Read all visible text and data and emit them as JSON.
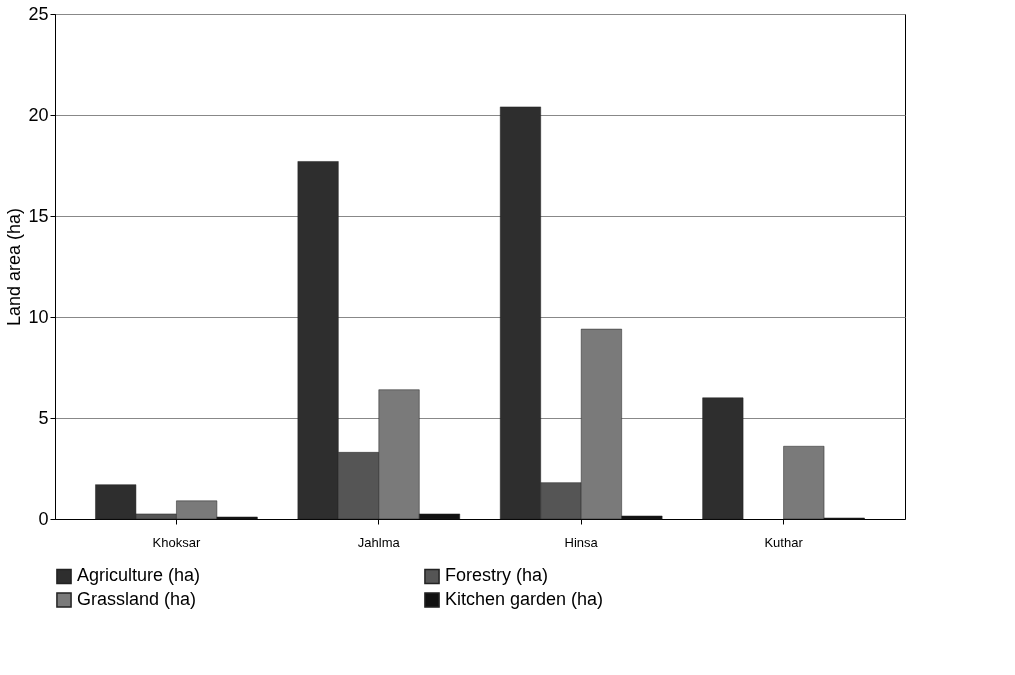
{
  "chart_data": {
    "type": "bar",
    "ylabel": "Land area (ha)",
    "categories": [
      "Khoksar",
      "Jahlma",
      "Hinsa",
      "Kuthar"
    ],
    "series": [
      {
        "name": "Agriculture (ha)",
        "color": "#2e2e2e",
        "values": [
          1.7,
          17.7,
          20.4,
          6.0
        ]
      },
      {
        "name": "Forestry (ha)",
        "color": "#555555",
        "values": [
          0.25,
          3.3,
          1.8,
          null
        ]
      },
      {
        "name": "Grassland (ha)",
        "color": "#7a7a7a",
        "values": [
          0.9,
          6.4,
          9.4,
          3.6
        ]
      },
      {
        "name": "Kitchen garden (ha)",
        "color": "#111111",
        "values": [
          0.1,
          0.25,
          0.15,
          0.05
        ]
      }
    ],
    "ylim": [
      0,
      25
    ],
    "yticks": [
      0,
      5,
      10,
      15,
      20,
      25
    ],
    "grid": "y",
    "legend": "bottom"
  }
}
